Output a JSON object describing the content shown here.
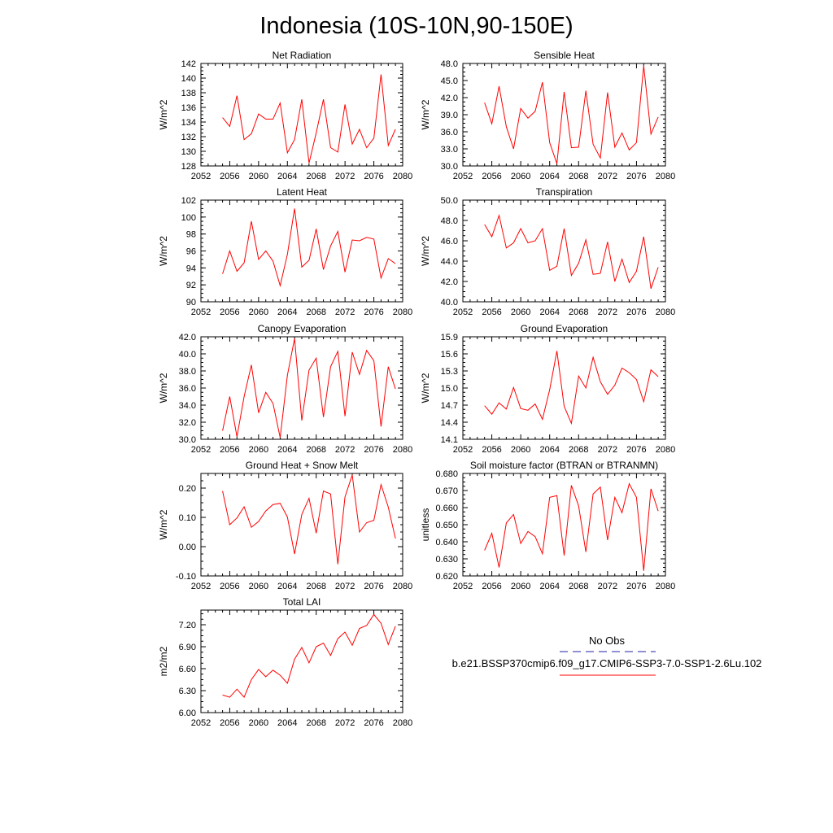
{
  "title": "Indonesia (10S-10N,90-150E)",
  "colors": {
    "model": "#ff0000",
    "obs": "#2222aa",
    "axes": "#000000"
  },
  "legend": {
    "obs_label": "No Obs",
    "model_label": "b.e21.BSSP370cmip6.f09_g17.CMIP6-SSP3-7.0-SSP1-2.6Lu.102"
  },
  "chart_data": [
    {
      "type": "line",
      "title": "Net Radiation",
      "ylabel": "W/m^2",
      "xlim": [
        2052,
        2080
      ],
      "ylim": [
        128,
        142
      ],
      "xticks": [
        "2052",
        "2056",
        "2060",
        "2064",
        "2068",
        "2072",
        "2076",
        "2080"
      ],
      "yticks": [
        "128",
        "130",
        "132",
        "134",
        "136",
        "138",
        "140",
        "142"
      ],
      "x": [
        2055,
        2056,
        2057,
        2058,
        2059,
        2060,
        2061,
        2062,
        2063,
        2064,
        2065,
        2066,
        2067,
        2068,
        2069,
        2070,
        2071,
        2072,
        2073,
        2074,
        2075,
        2076,
        2077,
        2078,
        2079
      ],
      "values": [
        134.6,
        133.4,
        137.6,
        131.6,
        132.4,
        135.1,
        134.4,
        134.4,
        136.6,
        129.8,
        131.6,
        137.1,
        128.4,
        132.5,
        137.1,
        130.5,
        129.9,
        136.4,
        131.0,
        133.0,
        130.5,
        131.8,
        140.5,
        130.8,
        133.0
      ]
    },
    {
      "type": "line",
      "title": "Sensible Heat",
      "ylabel": "W/m^2",
      "xlim": [
        2052,
        2080
      ],
      "ylim": [
        30,
        48
      ],
      "xticks": [
        "2052",
        "2056",
        "2060",
        "2064",
        "2068",
        "2072",
        "2076",
        "2080"
      ],
      "yticks": [
        "30.0",
        "33.0",
        "36.0",
        "39.0",
        "42.0",
        "45.0",
        "48.0"
      ],
      "x": [
        2055,
        2056,
        2057,
        2058,
        2059,
        2060,
        2061,
        2062,
        2063,
        2064,
        2065,
        2066,
        2067,
        2068,
        2069,
        2070,
        2071,
        2072,
        2073,
        2074,
        2075,
        2076,
        2077,
        2078,
        2079
      ],
      "values": [
        41.1,
        37.4,
        44.0,
        36.9,
        33.0,
        40.1,
        38.4,
        39.6,
        44.7,
        34.1,
        30.4,
        43.0,
        33.2,
        33.3,
        43.2,
        33.8,
        31.4,
        42.9,
        33.3,
        35.8,
        32.8,
        34.1,
        47.6,
        35.6,
        38.6
      ]
    },
    {
      "type": "line",
      "title": "Latent Heat",
      "ylabel": "W/m^2",
      "xlim": [
        2052,
        2080
      ],
      "ylim": [
        90,
        102
      ],
      "xticks": [
        "2052",
        "2056",
        "2060",
        "2064",
        "2068",
        "2072",
        "2076",
        "2080"
      ],
      "yticks": [
        "90",
        "92",
        "94",
        "96",
        "98",
        "100",
        "102"
      ],
      "x": [
        2055,
        2056,
        2057,
        2058,
        2059,
        2060,
        2061,
        2062,
        2063,
        2064,
        2065,
        2066,
        2067,
        2068,
        2069,
        2070,
        2071,
        2072,
        2073,
        2074,
        2075,
        2076,
        2077,
        2078,
        2079
      ],
      "values": [
        93.3,
        96.0,
        93.6,
        94.6,
        99.5,
        95.0,
        96.0,
        94.8,
        91.9,
        95.6,
        101.0,
        94.1,
        94.9,
        98.6,
        93.8,
        96.6,
        98.3,
        93.5,
        97.3,
        97.2,
        97.6,
        97.4,
        92.8,
        95.1,
        94.5
      ]
    },
    {
      "type": "line",
      "title": "Transpiration",
      "ylabel": "W/m^2",
      "xlim": [
        2052,
        2080
      ],
      "ylim": [
        40,
        50
      ],
      "xticks": [
        "2052",
        "2056",
        "2060",
        "2064",
        "2068",
        "2072",
        "2076",
        "2080"
      ],
      "yticks": [
        "40.0",
        "42.0",
        "44.0",
        "46.0",
        "48.0",
        "50.0"
      ],
      "x": [
        2055,
        2056,
        2057,
        2058,
        2059,
        2060,
        2061,
        2062,
        2063,
        2064,
        2065,
        2066,
        2067,
        2068,
        2069,
        2070,
        2071,
        2072,
        2073,
        2074,
        2075,
        2076,
        2077,
        2078,
        2079
      ],
      "values": [
        47.6,
        46.4,
        48.5,
        45.3,
        45.8,
        47.2,
        45.8,
        46.0,
        47.2,
        43.1,
        43.5,
        47.2,
        42.6,
        43.8,
        46.1,
        42.7,
        42.8,
        45.9,
        42.0,
        44.2,
        41.9,
        43.0,
        46.4,
        41.3,
        43.4
      ]
    },
    {
      "type": "line",
      "title": "Canopy Evaporation",
      "ylabel": "W/m^2",
      "xlim": [
        2052,
        2080
      ],
      "ylim": [
        30,
        42
      ],
      "xticks": [
        "2052",
        "2056",
        "2060",
        "2064",
        "2068",
        "2072",
        "2076",
        "2080"
      ],
      "yticks": [
        "30.0",
        "32.0",
        "34.0",
        "36.0",
        "38.0",
        "40.0",
        "42.0"
      ],
      "x": [
        2055,
        2056,
        2057,
        2058,
        2059,
        2060,
        2061,
        2062,
        2063,
        2064,
        2065,
        2066,
        2067,
        2068,
        2069,
        2070,
        2071,
        2072,
        2073,
        2074,
        2075,
        2076,
        2077,
        2078,
        2079
      ],
      "values": [
        31.0,
        35.0,
        30.3,
        35.0,
        38.7,
        33.1,
        35.5,
        34.2,
        30.2,
        37.5,
        41.8,
        32.2,
        38.1,
        39.5,
        32.6,
        38.5,
        40.3,
        32.7,
        40.2,
        37.6,
        40.4,
        39.2,
        31.5,
        38.5,
        35.9
      ]
    },
    {
      "type": "line",
      "title": "Ground Evaporation",
      "ylabel": "W/m^2",
      "xlim": [
        2052,
        2080
      ],
      "ylim": [
        14.1,
        15.9
      ],
      "xticks": [
        "2052",
        "2056",
        "2060",
        "2064",
        "2068",
        "2072",
        "2076",
        "2080"
      ],
      "yticks": [
        "14.1",
        "14.4",
        "14.7",
        "15.0",
        "15.3",
        "15.6",
        "15.9"
      ],
      "x": [
        2055,
        2056,
        2057,
        2058,
        2059,
        2060,
        2061,
        2062,
        2063,
        2064,
        2065,
        2066,
        2067,
        2068,
        2069,
        2070,
        2071,
        2072,
        2073,
        2074,
        2075,
        2076,
        2077,
        2078,
        2079
      ],
      "values": [
        14.69,
        14.54,
        14.74,
        14.63,
        15.01,
        14.64,
        14.61,
        14.72,
        14.45,
        14.97,
        15.65,
        14.68,
        14.38,
        15.21,
        15.0,
        15.54,
        15.11,
        14.89,
        15.05,
        15.35,
        15.27,
        15.15,
        14.76,
        15.32,
        15.2
      ]
    },
    {
      "type": "line",
      "title": "Ground Heat + Snow Melt",
      "ylabel": "W/m^2",
      "xlim": [
        2052,
        2080
      ],
      "ylim": [
        -0.1,
        0.25
      ],
      "xticks": [
        "2052",
        "2056",
        "2060",
        "2064",
        "2068",
        "2072",
        "2076",
        "2080"
      ],
      "yticks": [
        "-0.10",
        "0.00",
        "0.10",
        "0.20"
      ],
      "ytickvals": [
        -0.1,
        0.0,
        0.1,
        0.2
      ],
      "x": [
        2055,
        2056,
        2057,
        2058,
        2059,
        2060,
        2061,
        2062,
        2063,
        2064,
        2065,
        2066,
        2067,
        2068,
        2069,
        2070,
        2071,
        2072,
        2073,
        2074,
        2075,
        2076,
        2077,
        2078,
        2079
      ],
      "values": [
        0.19,
        0.075,
        0.098,
        0.136,
        0.066,
        0.086,
        0.122,
        0.144,
        0.148,
        0.101,
        -0.025,
        0.11,
        0.165,
        0.046,
        0.19,
        0.18,
        -0.06,
        0.17,
        0.245,
        0.05,
        0.082,
        0.09,
        0.212,
        0.135,
        0.028
      ]
    },
    {
      "type": "line",
      "title": "Soil moisture factor (BTRAN or BTRANMN)",
      "ylabel": "unitless",
      "xlim": [
        2052,
        2080
      ],
      "ylim": [
        0.62,
        0.68
      ],
      "xticks": [
        "2052",
        "2056",
        "2060",
        "2064",
        "2068",
        "2072",
        "2076",
        "2080"
      ],
      "yticks": [
        "0.620",
        "0.630",
        "0.640",
        "0.650",
        "0.660",
        "0.670",
        "0.680"
      ],
      "x": [
        2055,
        2056,
        2057,
        2058,
        2059,
        2060,
        2061,
        2062,
        2063,
        2064,
        2065,
        2066,
        2067,
        2068,
        2069,
        2070,
        2071,
        2072,
        2073,
        2074,
        2075,
        2076,
        2077,
        2078,
        2079
      ],
      "values": [
        0.635,
        0.645,
        0.625,
        0.651,
        0.656,
        0.639,
        0.646,
        0.643,
        0.633,
        0.666,
        0.667,
        0.632,
        0.673,
        0.661,
        0.634,
        0.668,
        0.672,
        0.641,
        0.666,
        0.657,
        0.674,
        0.666,
        0.623,
        0.671,
        0.658
      ]
    },
    {
      "type": "line",
      "title": "Total LAI",
      "ylabel": "m2/m2",
      "xlim": [
        2052,
        2080
      ],
      "ylim": [
        6.0,
        7.4
      ],
      "xticks": [
        "2052",
        "2056",
        "2060",
        "2064",
        "2068",
        "2072",
        "2076",
        "2080"
      ],
      "yticks": [
        "6.00",
        "6.30",
        "6.60",
        "6.90",
        "7.20"
      ],
      "ytickvals": [
        6.0,
        6.3,
        6.6,
        6.9,
        7.2
      ],
      "x": [
        2055,
        2056,
        2057,
        2058,
        2059,
        2060,
        2061,
        2062,
        2063,
        2064,
        2065,
        2066,
        2067,
        2068,
        2069,
        2070,
        2071,
        2072,
        2073,
        2074,
        2075,
        2076,
        2077,
        2078,
        2079
      ],
      "values": [
        6.24,
        6.21,
        6.32,
        6.21,
        6.45,
        6.59,
        6.49,
        6.58,
        6.51,
        6.4,
        6.73,
        6.89,
        6.68,
        6.9,
        6.95,
        6.78,
        7.01,
        7.1,
        6.92,
        7.15,
        7.19,
        7.34,
        7.22,
        6.93,
        7.18
      ]
    }
  ]
}
